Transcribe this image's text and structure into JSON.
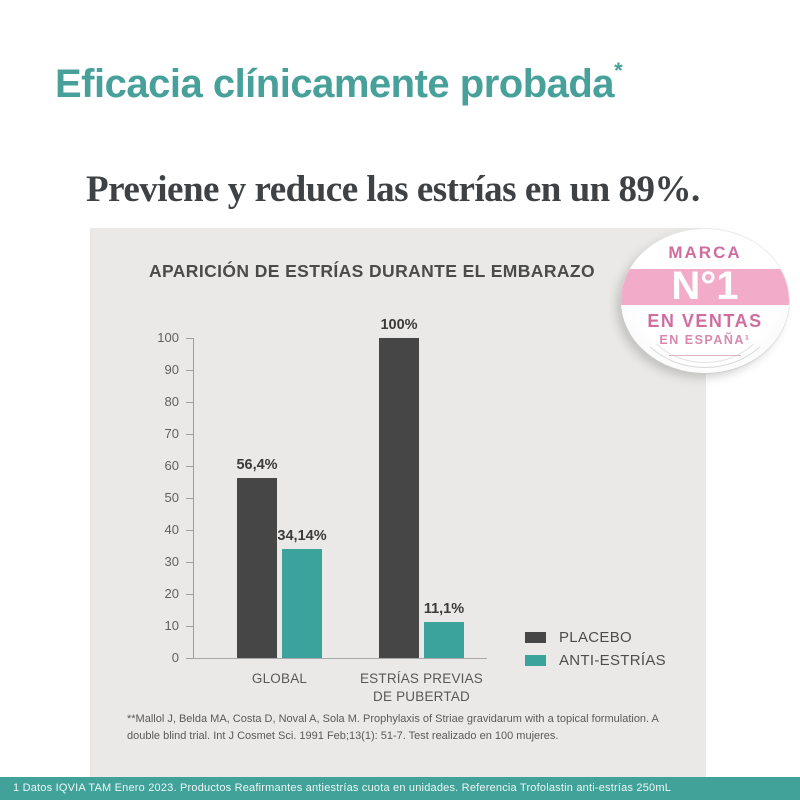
{
  "header": {
    "title": "Eficacia clínicamente probada",
    "asterisk": "*",
    "subtitle": "Previene y reduce las estrías en un 89%."
  },
  "badge": {
    "top": "MARCA",
    "band": "N°1",
    "mid": "EN VENTAS",
    "bottom": "EN ESPAÑA¹"
  },
  "chart_data": {
    "type": "bar",
    "title": "APARICIÓN DE ESTRÍAS DURANTE EL EMBARAZO",
    "categories": [
      "GLOBAL",
      "ESTRÍAS PREVIAS\nDE PUBERTAD"
    ],
    "series": [
      {
        "name": "PLACEBO",
        "color": "#464646",
        "values": [
          56.4,
          100
        ],
        "labels": [
          "56,4%",
          "100%"
        ]
      },
      {
        "name": "ANTI-ESTRÍAS",
        "color": "#3ba39b",
        "values": [
          34.14,
          11.1
        ],
        "labels": [
          "34,14%",
          "11,1%"
        ]
      }
    ],
    "ylabel": "",
    "xlabel": "",
    "ylim": [
      0,
      100
    ],
    "ytick_step": 10,
    "grid": false,
    "legend_position": "right-bottom"
  },
  "footnote": "**Mallol J, Belda MA, Costa D, Noval A, Sola M. Prophylaxis of Striae gravidarum with a topical formulation. A double blind trial. Int J Cosmet Sci. 1991 Feb;13(1): 51-7. Test realizado en 100 mujeres.",
  "footer": {
    "text": "1 Datos IQVIA TAM Enero 2023. Productos Reafirmantes antiestrías cuota en unidades. Referencia Trofolastin anti-estrías 250mL"
  },
  "colors": {
    "accent_teal": "#47a099",
    "bar_teal": "#3ba39b",
    "bar_dark": "#464646",
    "panel_bg": "#eae9e7",
    "badge_pink_band": "#f2abc8",
    "badge_pink_text": "#cf6d9f",
    "footer_teal": "#41a299"
  }
}
